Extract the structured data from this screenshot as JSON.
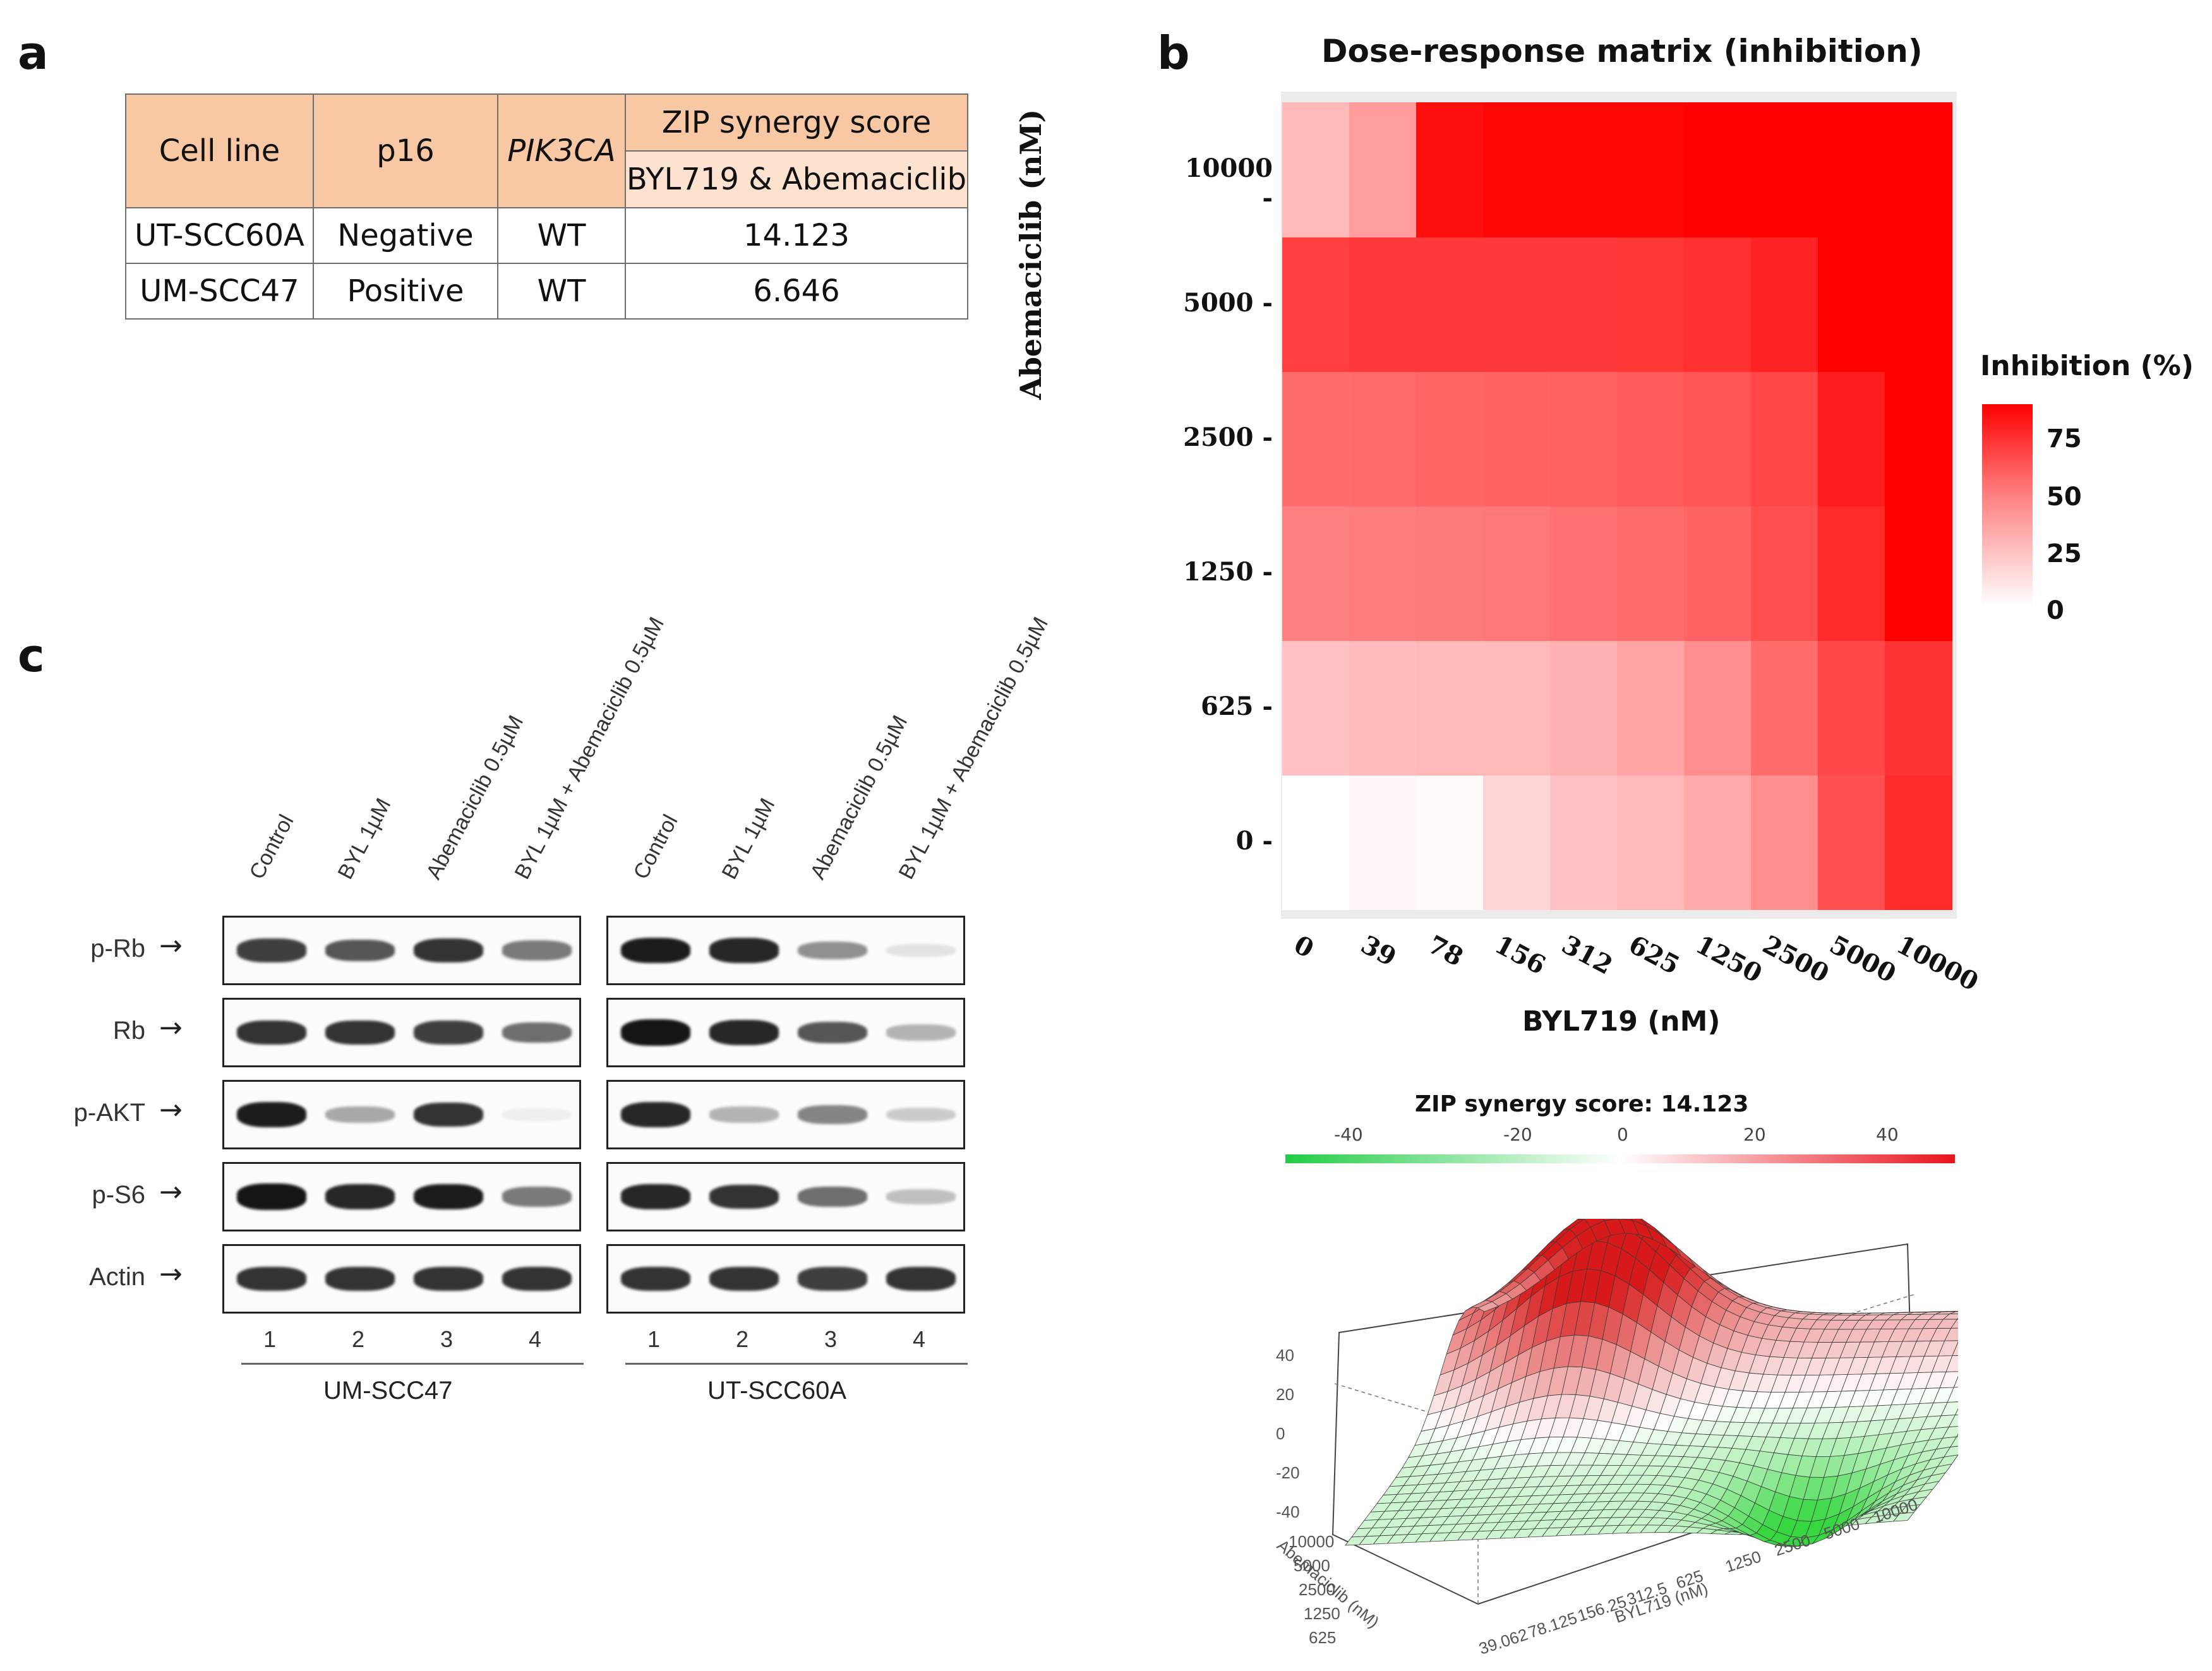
{
  "panels": {
    "a": "a",
    "b": "b",
    "c": "c"
  },
  "table": {
    "headers": {
      "cell_line": "Cell line",
      "p16": "p16",
      "pik3ca": "PIK3CA",
      "zip": "ZIP synergy score",
      "combo": "BYL719 & Abemaciclib"
    },
    "rows": [
      {
        "cell_line": "UT-SCC60A",
        "p16": "Negative",
        "pik3ca": "WT",
        "score": "14.123"
      },
      {
        "cell_line": "UM-SCC47",
        "p16": "Positive",
        "pik3ca": "WT",
        "score": "6.646"
      }
    ]
  },
  "chart_data": [
    {
      "type": "heatmap",
      "title": "Dose-response matrix (inhibition)",
      "xlabel": "BYL719 (nM)",
      "ylabel": "Abemaciclib (nM)",
      "x": [
        "0",
        "39",
        "78",
        "156",
        "312",
        "625",
        "1250",
        "2500",
        "5000",
        "10000"
      ],
      "y": [
        "0",
        "625",
        "1250",
        "2500",
        "5000",
        "10000"
      ],
      "values": [
        [
          0,
          3,
          2,
          15,
          22,
          25,
          30,
          40,
          62,
          75
        ],
        [
          22,
          24,
          25,
          25,
          28,
          32,
          40,
          52,
          65,
          72
        ],
        [
          45,
          46,
          47,
          48,
          50,
          52,
          55,
          62,
          75,
          92
        ],
        [
          52,
          53,
          54,
          55,
          56,
          58,
          60,
          65,
          80,
          90
        ],
        [
          68,
          70,
          70,
          70,
          70,
          71,
          73,
          78,
          95,
          97
        ],
        [
          25,
          35,
          85,
          88,
          88,
          88,
          90,
          95,
          98,
          92
        ]
      ],
      "legend": {
        "title": "Inhibition (%)",
        "ticks": [
          "75",
          "50",
          "25",
          "0"
        ],
        "range": [
          0,
          90
        ]
      },
      "colors": {
        "low": "#ffffff",
        "high": "#ff0000"
      }
    },
    {
      "type": "surface",
      "title": "ZIP synergy score: 14.123",
      "colorbar_ticks": [
        "-40",
        "-20",
        "0",
        "20",
        "40"
      ],
      "colorbar_range": [
        -48,
        48
      ],
      "z_ticks": [
        "40",
        "20",
        "0",
        "-20",
        "-40"
      ],
      "abemaciclib_ticks": [
        "10000",
        "5000",
        "2500",
        "1250",
        "625"
      ],
      "byl719_ticks": [
        "39.062",
        "78.125",
        "156.25",
        "312.5",
        "625",
        "1250",
        "2500",
        "5000",
        "10000"
      ],
      "xlabel": "BYL719 (nM)",
      "ylabel": "Abemaciclib (nM)",
      "colors": {
        "neg": "#22cc44",
        "mid": "#ffffff",
        "pos": "#e8141c"
      }
    }
  ],
  "blot": {
    "lanes": [
      "Control",
      "BYL 1µM",
      "Abemaciclib 0.5µM",
      "BYL 1µM + Abemaciclib 0.5µM"
    ],
    "rows": [
      "p-Rb",
      "Rb",
      "p-AKT",
      "p-S6",
      "Actin"
    ],
    "lane_numbers": [
      "1",
      "2",
      "3",
      "4"
    ],
    "cell_lines": [
      "UM-SCC47",
      "UT-SCC60A"
    ],
    "band_intensity": {
      "UM-SCC47": [
        [
          0.8,
          0.7,
          0.85,
          0.55
        ],
        [
          0.85,
          0.85,
          0.8,
          0.6
        ],
        [
          0.95,
          0.35,
          0.85,
          0.05
        ],
        [
          0.98,
          0.9,
          0.95,
          0.55
        ],
        [
          0.85,
          0.85,
          0.85,
          0.85
        ]
      ],
      "UT-SCC60A": [
        [
          0.95,
          0.9,
          0.45,
          0.1
        ],
        [
          0.98,
          0.9,
          0.7,
          0.3
        ],
        [
          0.9,
          0.3,
          0.5,
          0.2
        ],
        [
          0.9,
          0.85,
          0.6,
          0.25
        ],
        [
          0.85,
          0.85,
          0.8,
          0.85
        ]
      ]
    }
  }
}
